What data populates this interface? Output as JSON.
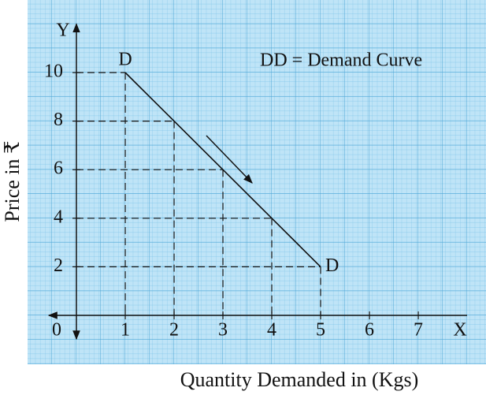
{
  "chart_data": {
    "type": "line",
    "title": "DD = Demand Curve",
    "x_label": "Quantity Demanded in (Kgs)",
    "y_label": "Price in ₹",
    "x_axis_name": "X",
    "y_axis_name": "Y",
    "origin_label": "0",
    "x": [
      1,
      2,
      3,
      4,
      5
    ],
    "series": [
      {
        "name": "DD",
        "color": "#111111",
        "values": [
          10,
          8,
          6,
          4,
          2
        ]
      }
    ],
    "point_labels": [
      "D",
      null,
      null,
      null,
      "D"
    ],
    "xlim": [
      0,
      8
    ],
    "ylim": [
      0,
      12
    ],
    "xticks": [
      1,
      2,
      3,
      4,
      5,
      6,
      7
    ],
    "yticks": [
      2,
      4,
      6,
      8,
      10
    ],
    "grid": true
  }
}
